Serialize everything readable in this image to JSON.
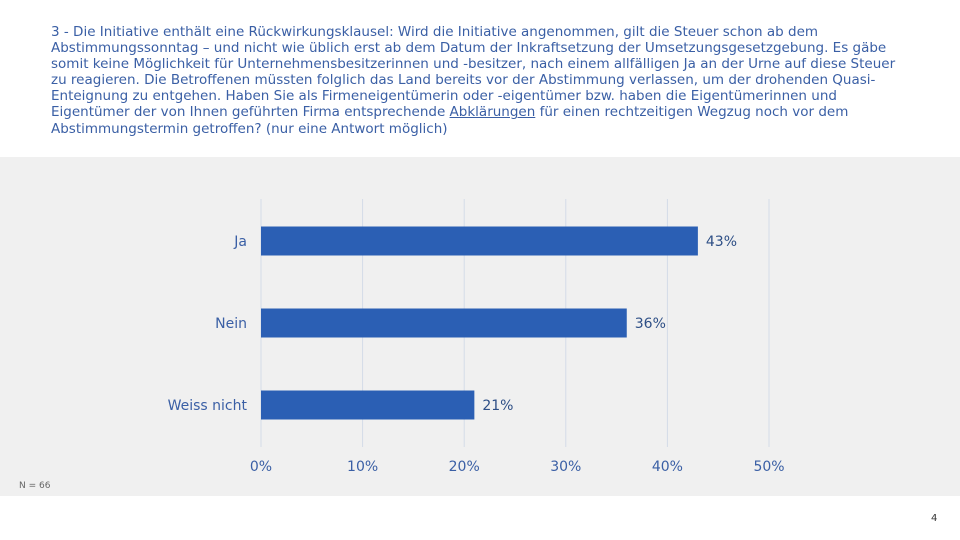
{
  "question": {
    "prefix": "3 - Die Initiative enthält eine Rückwirkungsklausel: Wird die Initiative angenommen, gilt die Steuer schon ab dem Abstimmungssonntag – und nicht wie üblich erst ab dem Datum der Inkraftsetzung der Umsetzungsgesetzgebung. Es gäbe somit keine Möglichkeit für Unternehmensbesitzerinnen und -besitzer, nach einem allfälligen Ja an der Urne auf diese Steuer zu reagieren. Die Betroffenen müssten folglich das Land bereits vor der Abstimmung verlassen, um der drohenden Quasi-Enteignung zu entgehen. Haben Sie als Firmeneigentümerin oder -eigentümer bzw. haben die Eigentümerinnen und Eigentümer der von Ihnen geführten Firma entsprechende ",
    "underlined": "Abklärungen",
    "suffix": " für einen rechtzeitigen Wegzug noch vor dem Abstimmungstermin getroffen? (nur eine Antwort möglich)"
  },
  "colors": {
    "bar": "#2b5fb4",
    "question_text": "#3a5fa5",
    "axis_text": "#3a5fa5",
    "panel_background": "#f0f0f0",
    "grid": "#d4dbe8"
  },
  "chart_data": {
    "type": "bar",
    "orientation": "horizontal",
    "categories": [
      "Ja",
      "Nein",
      "Weiss nicht"
    ],
    "values": [
      43,
      36,
      21
    ],
    "value_labels": [
      "43%",
      "36%",
      "21%"
    ],
    "xlim": [
      0,
      50
    ],
    "xticks": [
      0,
      10,
      20,
      30,
      40,
      50
    ],
    "xtick_labels": [
      "0%",
      "10%",
      "20%",
      "30%",
      "40%",
      "50%"
    ],
    "grid": true
  },
  "footer": {
    "n_note": "N = 66",
    "page_number": "4"
  }
}
